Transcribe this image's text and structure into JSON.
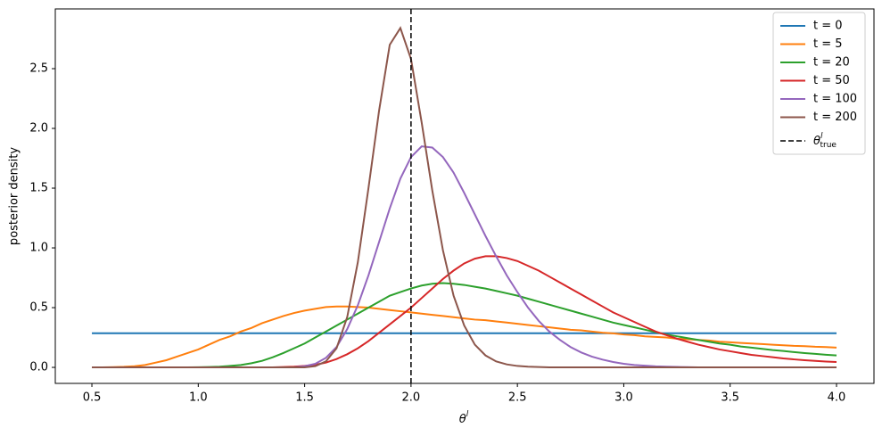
{
  "chart_data": {
    "type": "line",
    "xlabel": {
      "text": "θ",
      "sup": "l"
    },
    "ylabel": "posterior density",
    "x": [
      0.5,
      0.55,
      0.6,
      0.65,
      0.7,
      0.75,
      0.8,
      0.85,
      0.9,
      0.95,
      1.0,
      1.05,
      1.1,
      1.15,
      1.2,
      1.25,
      1.3,
      1.35,
      1.4,
      1.45,
      1.5,
      1.55,
      1.6,
      1.65,
      1.7,
      1.75,
      1.8,
      1.85,
      1.9,
      1.95,
      2.0,
      2.05,
      2.1,
      2.15,
      2.2,
      2.25,
      2.3,
      2.35,
      2.4,
      2.45,
      2.5,
      2.55,
      2.6,
      2.65,
      2.7,
      2.75,
      2.8,
      2.85,
      2.9,
      2.95,
      3.0,
      3.05,
      3.1,
      3.15,
      3.2,
      3.25,
      3.3,
      3.35,
      3.4,
      3.45,
      3.5,
      3.55,
      3.6,
      3.65,
      3.7,
      3.75,
      3.8,
      3.85,
      3.9,
      3.95,
      4.0
    ],
    "series": [
      {
        "name": "t = 0",
        "color": "#1f77b4",
        "values": [
          0.2857,
          0.2857,
          0.2857,
          0.2857,
          0.2857,
          0.2857,
          0.2857,
          0.2857,
          0.2857,
          0.2857,
          0.2857,
          0.2857,
          0.2857,
          0.2857,
          0.2857,
          0.2857,
          0.2857,
          0.2857,
          0.2857,
          0.2857,
          0.2857,
          0.2857,
          0.2857,
          0.2857,
          0.2857,
          0.2857,
          0.2857,
          0.2857,
          0.2857,
          0.2857,
          0.2857,
          0.2857,
          0.2857,
          0.2857,
          0.2857,
          0.2857,
          0.2857,
          0.2857,
          0.2857,
          0.2857,
          0.2857,
          0.2857,
          0.2857,
          0.2857,
          0.2857,
          0.2857,
          0.2857,
          0.2857,
          0.2857,
          0.2857,
          0.2857,
          0.2857,
          0.2857,
          0.2857,
          0.2857,
          0.2857,
          0.2857,
          0.2857,
          0.2857,
          0.2857,
          0.2857,
          0.2857,
          0.2857,
          0.2857,
          0.2857,
          0.2857,
          0.2857,
          0.2857,
          0.2857,
          0.2857,
          0.2857
        ]
      },
      {
        "name": "t = 5",
        "color": "#ff7f0e",
        "values": [
          0,
          0,
          0.002,
          0.005,
          0.01,
          0.02,
          0.04,
          0.06,
          0.09,
          0.12,
          0.15,
          0.19,
          0.23,
          0.26,
          0.3,
          0.33,
          0.37,
          0.4,
          0.43,
          0.455,
          0.475,
          0.49,
          0.505,
          0.51,
          0.51,
          0.505,
          0.5,
          0.49,
          0.48,
          0.47,
          0.46,
          0.45,
          0.44,
          0.43,
          0.42,
          0.41,
          0.4,
          0.395,
          0.385,
          0.375,
          0.365,
          0.355,
          0.345,
          0.335,
          0.325,
          0.315,
          0.31,
          0.3,
          0.29,
          0.285,
          0.275,
          0.27,
          0.26,
          0.255,
          0.25,
          0.24,
          0.235,
          0.23,
          0.225,
          0.215,
          0.21,
          0.205,
          0.2,
          0.195,
          0.19,
          0.185,
          0.18,
          0.178,
          0.173,
          0.17,
          0.165
        ]
      },
      {
        "name": "t = 20",
        "color": "#2ca02c",
        "values": [
          0,
          0,
          0,
          0,
          0,
          0,
          0,
          0,
          0,
          0,
          0.001,
          0.003,
          0.006,
          0.012,
          0.02,
          0.035,
          0.055,
          0.085,
          0.12,
          0.16,
          0.2,
          0.25,
          0.3,
          0.35,
          0.4,
          0.45,
          0.5,
          0.55,
          0.6,
          0.63,
          0.66,
          0.685,
          0.7,
          0.705,
          0.7,
          0.69,
          0.675,
          0.66,
          0.64,
          0.62,
          0.6,
          0.575,
          0.55,
          0.525,
          0.5,
          0.475,
          0.45,
          0.425,
          0.4,
          0.375,
          0.355,
          0.335,
          0.315,
          0.295,
          0.275,
          0.26,
          0.245,
          0.23,
          0.215,
          0.2,
          0.19,
          0.175,
          0.165,
          0.155,
          0.145,
          0.137,
          0.128,
          0.12,
          0.113,
          0.106,
          0.1
        ]
      },
      {
        "name": "t = 50",
        "color": "#d62728",
        "values": [
          0,
          0,
          0,
          0,
          0,
          0,
          0,
          0,
          0,
          0,
          0,
          0,
          0,
          0,
          0,
          0,
          0,
          0,
          0.003,
          0.006,
          0.012,
          0.022,
          0.04,
          0.07,
          0.11,
          0.16,
          0.22,
          0.29,
          0.36,
          0.43,
          0.5,
          0.58,
          0.66,
          0.74,
          0.81,
          0.87,
          0.91,
          0.93,
          0.93,
          0.915,
          0.89,
          0.85,
          0.81,
          0.76,
          0.71,
          0.66,
          0.61,
          0.56,
          0.51,
          0.46,
          0.42,
          0.38,
          0.34,
          0.3,
          0.27,
          0.24,
          0.215,
          0.19,
          0.17,
          0.15,
          0.135,
          0.12,
          0.105,
          0.095,
          0.085,
          0.075,
          0.067,
          0.06,
          0.054,
          0.049,
          0.045
        ]
      },
      {
        "name": "t = 100",
        "color": "#9467bd",
        "values": [
          0,
          0,
          0,
          0,
          0,
          0,
          0,
          0,
          0,
          0,
          0,
          0,
          0,
          0,
          0,
          0,
          0,
          0,
          0,
          0,
          0.01,
          0.03,
          0.08,
          0.17,
          0.32,
          0.52,
          0.77,
          1.05,
          1.33,
          1.58,
          1.76,
          1.85,
          1.84,
          1.76,
          1.63,
          1.46,
          1.28,
          1.1,
          0.93,
          0.77,
          0.63,
          0.5,
          0.39,
          0.3,
          0.23,
          0.17,
          0.125,
          0.09,
          0.065,
          0.045,
          0.03,
          0.02,
          0.014,
          0.009,
          0.006,
          0.004,
          0.002,
          0,
          0,
          0,
          0,
          0,
          0,
          0,
          0,
          0,
          0,
          0,
          0,
          0,
          0
        ]
      },
      {
        "name": "t = 200",
        "color": "#8c564b",
        "values": [
          0,
          0,
          0,
          0,
          0,
          0,
          0,
          0,
          0,
          0,
          0,
          0,
          0,
          0,
          0,
          0,
          0,
          0,
          0,
          0,
          0,
          0.01,
          0.05,
          0.16,
          0.42,
          0.88,
          1.5,
          2.15,
          2.7,
          2.84,
          2.58,
          2.05,
          1.48,
          0.98,
          0.6,
          0.35,
          0.19,
          0.1,
          0.05,
          0.025,
          0.012,
          0.006,
          0.003,
          0,
          0,
          0,
          0,
          0,
          0,
          0,
          0,
          0,
          0,
          0,
          0,
          0,
          0,
          0,
          0,
          0,
          0,
          0,
          0,
          0,
          0,
          0,
          0,
          0,
          0,
          0,
          0
        ]
      }
    ],
    "vline": {
      "x": 2.0,
      "color": "#000000",
      "label": "θ",
      "label_sup": "l",
      "label_sub": "true"
    },
    "xlim": [
      0.328,
      4.176
    ],
    "ylim": [
      -0.134,
      3.0
    ],
    "xticks": [
      0.5,
      {
        "value": 1.0,
        "label": "1.0"
      },
      1.5,
      {
        "value": 2.0,
        "label": "2.0"
      },
      2.5,
      {
        "value": 3.0,
        "label": "3.0"
      },
      3.5,
      {
        "value": 4.0,
        "label": "4.0"
      }
    ],
    "yticks": [
      {
        "value": 0.0,
        "label": "0.0"
      },
      0.5,
      {
        "value": 1.0,
        "label": "1.0"
      },
      1.5,
      {
        "value": 2.0,
        "label": "2.0"
      },
      2.5
    ],
    "grid": false,
    "legend": "upper-right"
  }
}
